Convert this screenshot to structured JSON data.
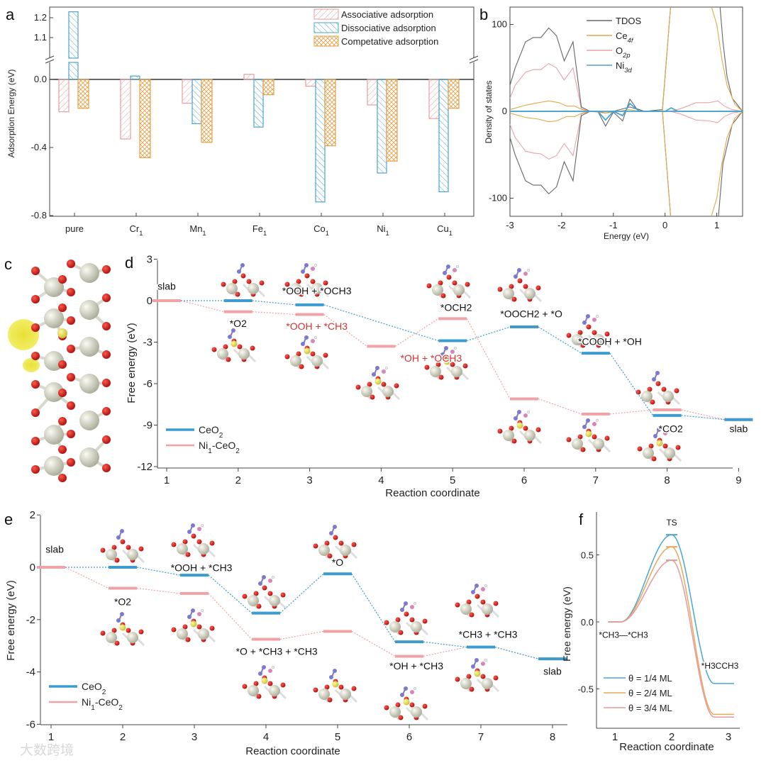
{
  "colors": {
    "associative": "#e79ea3",
    "dissociative": "#4ca4cc",
    "competitive": "#e6a24c",
    "ceo2": "#3d9bd0",
    "ni_ceo2": "#f0a3a6",
    "tdos": "#666666",
    "ce4f": "#e3a84e",
    "o2p": "#eaa3a8",
    "ni3d": "#4aa3cc",
    "red_label": "#d63333",
    "theta1": "#4aa6d2",
    "theta2": "#e9a85a",
    "theta3": "#e59a9c"
  },
  "watermark": "大数跨境",
  "chart_data": [
    {
      "id": "a",
      "panel_label": "a",
      "type": "bar",
      "ylabel": "Adsorption Energy (eV)",
      "categories": [
        {
          "base": "pure",
          "sub": ""
        },
        {
          "base": "Cr",
          "sub": "1"
        },
        {
          "base": "Mn",
          "sub": "1"
        },
        {
          "base": "Fe",
          "sub": "1"
        },
        {
          "base": "Co",
          "sub": "1"
        },
        {
          "base": "Ni",
          "sub": "1"
        },
        {
          "base": "Cu",
          "sub": "1"
        }
      ],
      "series": [
        {
          "name": "Associative adsorption",
          "values": [
            -0.19,
            -0.35,
            -0.14,
            0.03,
            -0.04,
            -0.15,
            -0.23
          ]
        },
        {
          "name": "Dissociative adsorption",
          "values": [
            1.23,
            0.02,
            -0.26,
            -0.28,
            -0.72,
            -0.55,
            -0.66
          ]
        },
        {
          "name": "Competative adsorption",
          "values": [
            -0.17,
            -0.46,
            -0.37,
            -0.09,
            -0.39,
            -0.48,
            -0.17
          ]
        }
      ],
      "ylim_lower": [
        -0.8,
        0.1
      ],
      "ylim_upper": [
        1.03,
        1.25
      ],
      "axis_break": true,
      "yticks": [
        "1.2",
        "1.1",
        "0.0",
        "-0.4",
        "-0.8"
      ],
      "legend": "top-right"
    },
    {
      "id": "b",
      "panel_label": "b",
      "type": "line",
      "xlabel": "Energy (eV)",
      "ylabel": "Density of states",
      "xlim": [
        -3,
        1.5
      ],
      "ylim": [
        -120,
        120
      ],
      "xticks": [
        "-3",
        "-2",
        "-1",
        "0",
        "1"
      ],
      "yticks": [
        "100",
        "0",
        "-100"
      ],
      "series": [
        {
          "name": {
            "base": "TDOS",
            "sub": ""
          },
          "key": "tdos",
          "up": [
            [
              -3,
              30
            ],
            [
              -2.9,
              50
            ],
            [
              -2.7,
              80
            ],
            [
              -2.55,
              85
            ],
            [
              -2.4,
              85
            ],
            [
              -2.25,
              96
            ],
            [
              -2.1,
              87
            ],
            [
              -1.95,
              58
            ],
            [
              -1.78,
              80
            ],
            [
              -1.62,
              5
            ],
            [
              -1.45,
              0
            ],
            [
              -1.3,
              0
            ],
            [
              -1.15,
              -17
            ],
            [
              -1.0,
              -1
            ],
            [
              -0.82,
              -11
            ],
            [
              -0.68,
              14
            ],
            [
              -0.55,
              3
            ],
            [
              -0.4,
              0
            ],
            [
              -0.05,
              2
            ],
            [
              0.12,
              130
            ],
            [
              1.05,
              130
            ],
            [
              1.12,
              80
            ],
            [
              1.2,
              40
            ],
            [
              1.3,
              15
            ],
            [
              1.5,
              0
            ]
          ],
          "down": [
            [
              -3,
              -30
            ],
            [
              -2.9,
              -50
            ],
            [
              -2.7,
              -80
            ],
            [
              -2.55,
              -85
            ],
            [
              -2.4,
              -85
            ],
            [
              -2.25,
              -95
            ],
            [
              -2.1,
              -87
            ],
            [
              -1.95,
              -58
            ],
            [
              -1.78,
              -80
            ],
            [
              -1.62,
              -5
            ],
            [
              -1.45,
              0
            ],
            [
              -1.3,
              0
            ],
            [
              -1.15,
              -2
            ],
            [
              -1.0,
              0
            ],
            [
              -0.68,
              5
            ],
            [
              -0.4,
              0
            ],
            [
              -0.05,
              0
            ],
            [
              0.12,
              -130
            ],
            [
              1.02,
              -130
            ],
            [
              1.12,
              -60
            ],
            [
              1.2,
              -40
            ],
            [
              1.3,
              -15
            ],
            [
              1.5,
              0
            ]
          ]
        },
        {
          "name": {
            "base": "Ce",
            "sub": "4f"
          },
          "key": "ce4f",
          "up": [
            [
              -3,
              2
            ],
            [
              -2.7,
              7
            ],
            [
              -2.45,
              10
            ],
            [
              -2.25,
              12
            ],
            [
              -2.05,
              10
            ],
            [
              -1.9,
              6
            ],
            [
              -1.75,
              6
            ],
            [
              -1.6,
              2
            ],
            [
              -1.45,
              0
            ],
            [
              -1.15,
              -2
            ],
            [
              -0.9,
              0
            ],
            [
              -0.7,
              2
            ],
            [
              -0.5,
              0
            ],
            [
              -0.05,
              0
            ],
            [
              0.12,
              130
            ],
            [
              0.85,
              130
            ],
            [
              1.0,
              100
            ],
            [
              1.1,
              60
            ],
            [
              1.2,
              30
            ],
            [
              1.35,
              8
            ],
            [
              1.5,
              0
            ]
          ],
          "down": [
            [
              -3,
              -2
            ],
            [
              -2.7,
              -7
            ],
            [
              -2.45,
              -9
            ],
            [
              -2.25,
              -12
            ],
            [
              -2.1,
              -11
            ],
            [
              -1.9,
              -6
            ],
            [
              -1.75,
              -6
            ],
            [
              -1.6,
              -2
            ],
            [
              -1.45,
              0
            ],
            [
              -0.05,
              0
            ],
            [
              0.12,
              -130
            ],
            [
              0.85,
              -130
            ],
            [
              1.0,
              -100
            ],
            [
              1.1,
              -60
            ],
            [
              1.2,
              -30
            ],
            [
              1.35,
              -8
            ],
            [
              1.5,
              0
            ]
          ]
        },
        {
          "name": {
            "base": "O",
            "sub": "2p"
          },
          "key": "o2p",
          "up": [
            [
              -3,
              15
            ],
            [
              -2.9,
              30
            ],
            [
              -2.7,
              45
            ],
            [
              -2.55,
              48
            ],
            [
              -2.4,
              48
            ],
            [
              -2.25,
              55
            ],
            [
              -2.1,
              50
            ],
            [
              -1.95,
              36
            ],
            [
              -1.78,
              50
            ],
            [
              -1.62,
              3
            ],
            [
              -1.45,
              0
            ],
            [
              -0.4,
              0
            ],
            [
              0.1,
              0
            ],
            [
              0.3,
              3
            ],
            [
              0.6,
              10
            ],
            [
              0.85,
              10
            ],
            [
              1.02,
              12
            ],
            [
              1.15,
              6
            ],
            [
              1.3,
              2
            ],
            [
              1.5,
              0
            ]
          ],
          "down": [
            [
              -3,
              -15
            ],
            [
              -2.9,
              -30
            ],
            [
              -2.7,
              -46
            ],
            [
              -2.55,
              -48
            ],
            [
              -2.4,
              -49
            ],
            [
              -2.25,
              -55
            ],
            [
              -2.1,
              -51
            ],
            [
              -1.95,
              -37
            ],
            [
              -1.78,
              -51
            ],
            [
              -1.62,
              -3
            ],
            [
              -1.45,
              0
            ],
            [
              -0.4,
              0
            ],
            [
              0.1,
              0
            ],
            [
              0.3,
              -3
            ],
            [
              0.6,
              -10
            ],
            [
              0.85,
              -11
            ],
            [
              1.02,
              -13
            ],
            [
              1.15,
              -6
            ],
            [
              1.3,
              -2
            ],
            [
              1.5,
              0
            ]
          ]
        },
        {
          "name": {
            "base": "Ni",
            "sub": "3d"
          },
          "key": "ni3d",
          "up": [
            [
              -3,
              0
            ],
            [
              -1.3,
              0
            ],
            [
              -1.15,
              -10
            ],
            [
              -1.0,
              0
            ],
            [
              -0.82,
              -5
            ],
            [
              -0.68,
              9
            ],
            [
              -0.5,
              0
            ],
            [
              0,
              0
            ],
            [
              0.12,
              4
            ],
            [
              0.25,
              0
            ],
            [
              1.5,
              0
            ]
          ],
          "down": [
            [
              -3,
              0
            ],
            [
              1.5,
              0
            ]
          ]
        }
      ],
      "legend": "top-center"
    },
    {
      "id": "d",
      "panel_label": "d",
      "type": "line",
      "xlabel": "Reaction coordinate",
      "ylabel": "Free energy (eV)",
      "xlim": [
        0.95,
        9.25
      ],
      "ylim": [
        -12,
        3
      ],
      "xticks": [
        "1",
        "2",
        "3",
        "4",
        "5",
        "6",
        "7",
        "8",
        "9"
      ],
      "yticks": [
        "3",
        "0",
        "-3",
        "-6",
        "-9",
        "-12"
      ],
      "series": [
        {
          "name": "CeO2",
          "key": "ceo2",
          "steps": [
            1,
            2,
            3,
            5,
            6,
            7,
            8,
            9
          ],
          "values": [
            0,
            0,
            -0.3,
            -2.9,
            -1.9,
            -3.8,
            -8.3,
            -8.6
          ],
          "draw_from": 1
        },
        {
          "name": "Ni1-CeO2",
          "key": "ni_ceo2",
          "steps": [
            1,
            2,
            3,
            4,
            5,
            6,
            7,
            8,
            9
          ],
          "values": [
            0,
            -0.8,
            -1.0,
            -3.3,
            -1.3,
            -7.1,
            -8.2,
            -7.9,
            -8.6
          ],
          "draw_from": 0
        }
      ],
      "annotations": [
        {
          "text": "slab",
          "x": 1.0,
          "y": 0.8,
          "red": false
        },
        {
          "text": "*O2",
          "x": 2.0,
          "y": -1.9,
          "red": false
        },
        {
          "text": "*OOH + *OCH3",
          "x": 3.1,
          "y": 0.45,
          "red": false
        },
        {
          "text": "*OOH + *CH3",
          "x": 3.1,
          "y": -2.1,
          "red": true
        },
        {
          "text": "*OH + *OCH3",
          "x": 4.7,
          "y": -4.4,
          "red": true
        },
        {
          "text": "*OCH2",
          "x": 5.05,
          "y": -0.75,
          "red": false
        },
        {
          "text": "*OOCH2 + *O",
          "x": 6.1,
          "y": -1.2,
          "red": false
        },
        {
          "text": "*COOH + *OH",
          "x": 7.2,
          "y": -3.2,
          "red": false
        },
        {
          "text": "*CO2",
          "x": 8.05,
          "y": -9.5,
          "red": false
        },
        {
          "text": "slab",
          "x": 9.0,
          "y": -9.5,
          "red": false
        }
      ],
      "legend": "bottom-left"
    },
    {
      "id": "e",
      "panel_label": "e",
      "type": "line",
      "xlabel": "Reaction coordinate",
      "ylabel": "Free energy (eV)",
      "xlim": [
        0.85,
        8.2
      ],
      "ylim": [
        -6,
        2
      ],
      "xticks": [
        "1",
        "2",
        "3",
        "4",
        "5",
        "6",
        "7",
        "8"
      ],
      "yticks": [
        "2",
        "0",
        "-2",
        "-4",
        "-6"
      ],
      "series": [
        {
          "name": "CeO2",
          "key": "ceo2",
          "steps": [
            1,
            2,
            3,
            4,
            5,
            6,
            7,
            8
          ],
          "values": [
            0,
            0,
            -0.3,
            -1.75,
            -0.25,
            -2.85,
            -3.05,
            -3.5
          ],
          "draw_from": 1
        },
        {
          "name": "Ni1-CeO2",
          "key": "ni_ceo2",
          "steps": [
            1,
            2,
            3,
            4,
            5,
            6,
            7,
            8
          ],
          "values": [
            0,
            -0.8,
            -1.0,
            -2.75,
            -2.45,
            -3.4,
            -3.05,
            -3.5
          ],
          "draw_from": 0
        }
      ],
      "annotations": [
        {
          "text": "slab",
          "x": 1.05,
          "y": 0.55,
          "red": false
        },
        {
          "text": "*O2",
          "x": 2.0,
          "y": -1.45,
          "red": false
        },
        {
          "text": "*OOH + *CH3",
          "x": 3.1,
          "y": -0.15,
          "red": false
        },
        {
          "text": "*O + *CH3 + *CH3",
          "x": 4.15,
          "y": -3.35,
          "red": false
        },
        {
          "text": "*O",
          "x": 5.0,
          "y": 0.05,
          "red": false
        },
        {
          "text": "*OH + *CH3",
          "x": 6.1,
          "y": -3.9,
          "red": false
        },
        {
          "text": "*CH3 + *CH3",
          "x": 7.1,
          "y": -2.7,
          "red": false
        },
        {
          "text": "slab",
          "x": 8.0,
          "y": -4.1,
          "red": false
        }
      ],
      "legend": "bottom-left"
    },
    {
      "id": "f",
      "panel_label": "f",
      "type": "line",
      "xlabel": "Reaction coordinate",
      "ylabel": "Free energy (eV)",
      "xlim": [
        0.7,
        3.3
      ],
      "ylim": [
        -0.8,
        0.75
      ],
      "xticks": [
        "1",
        "2",
        "3"
      ],
      "yticks": [
        "0.5",
        "0.0",
        "-0.5"
      ],
      "initial": 0.0,
      "series": [
        {
          "name": "θ = 1/4 ML",
          "key": "theta1",
          "ts": 0.65,
          "final": -0.46
        },
        {
          "name": "θ = 2/4 ML",
          "key": "theta2",
          "ts": 0.56,
          "final": -0.69
        },
        {
          "name": "θ = 3/4 ML",
          "key": "theta3",
          "ts": 0.46,
          "final": -0.71
        }
      ],
      "annotations": [
        {
          "text": "TS",
          "x": 2.0,
          "y": 0.72,
          "red": false
        },
        {
          "text": "*CH3—*CH3",
          "x": 1.15,
          "y": -0.12,
          "red": false
        },
        {
          "text": "*H3CCH3",
          "x": 2.85,
          "y": -0.35,
          "red": false
        }
      ],
      "legend": "bottom-left"
    }
  ],
  "panel_c": {
    "panel_label": "c"
  }
}
